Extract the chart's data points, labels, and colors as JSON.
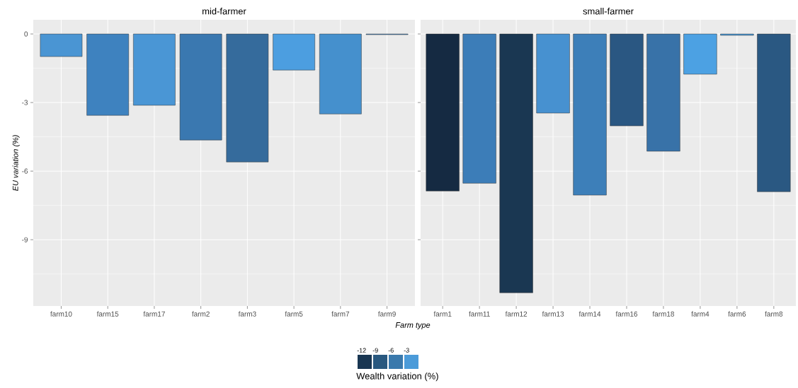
{
  "chart_data": [
    {
      "type": "bar",
      "title": "mid-farmer",
      "xlabel": "Farm type",
      "ylabel": "EU variation (%)",
      "categories": [
        "farm10",
        "farm15",
        "farm17",
        "farm2",
        "farm3",
        "farm5",
        "farm7",
        "farm9"
      ],
      "values": [
        -0.99,
        -3.56,
        -3.12,
        -4.64,
        -5.6,
        -1.58,
        -3.5,
        -0.03
      ],
      "colors": [
        "#4a95d3",
        "#3e82bf",
        "#4a96d5",
        "#3a78b0",
        "#356b9c",
        "#4c9ee0",
        "#4590cd",
        "#4a8fcc"
      ],
      "ylim": [
        -11.9,
        0.62
      ],
      "yticks": [
        0,
        {
          "value": -1.5,
          "label": null
        },
        -3,
        {
          "value": -4.5,
          "label": null
        },
        -6,
        {
          "value": -7.5,
          "label": null
        },
        -9,
        {
          "value": -10.5,
          "label": null
        }
      ],
      "grid": true
    },
    {
      "type": "bar",
      "title": "small-farmer",
      "categories": [
        "farm1",
        "farm11",
        "farm12",
        "farm13",
        "farm14",
        "farm16",
        "farm18",
        "farm4",
        "farm6",
        "farm8"
      ],
      "values": [
        -6.87,
        -6.53,
        -11.32,
        -3.46,
        -7.05,
        -4.02,
        -5.13,
        -1.76,
        -0.06,
        -6.9
      ],
      "colors": [
        "#152a42",
        "#3c7db8",
        "#1a3752",
        "#4791d0",
        "#3d7fb9",
        "#2a5782",
        "#3872a8",
        "#4ca1e3",
        "#4a9ad9",
        "#2a5882"
      ],
      "ylim": [
        -11.9,
        0.62
      ],
      "yticks": [
        0,
        {
          "value": -1.5,
          "label": null
        },
        -3,
        {
          "value": -4.5,
          "label": null
        },
        -6,
        {
          "value": -7.5,
          "label": null
        },
        -9,
        {
          "value": -10.5,
          "label": null
        }
      ],
      "grid": true,
      "tick_labels": "x",
      "clabel": "Wealth variation (%)",
      "clim": [
        -13,
        -1
      ],
      "cticks": [
        -12,
        -9,
        -6,
        -3
      ]
    }
  ]
}
